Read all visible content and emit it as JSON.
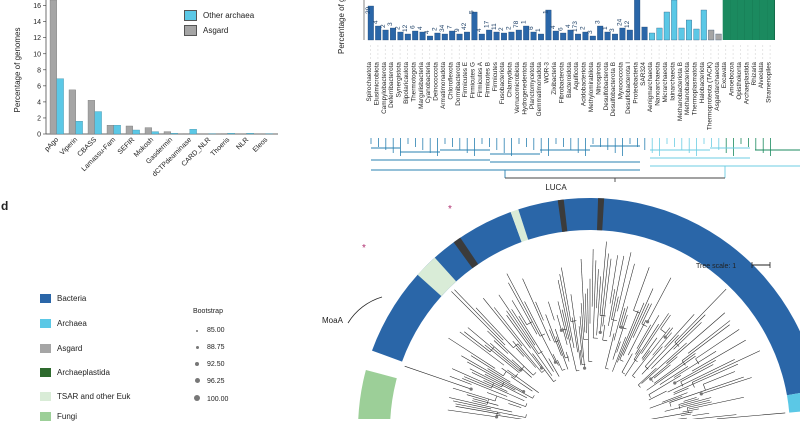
{
  "panel_c_left": {
    "ylabel": "Percentage of genomes",
    "yticks": [
      "0",
      "2",
      "4",
      "6",
      "8",
      "10",
      "12",
      "14",
      "16"
    ],
    "legend": [
      "Other archaea",
      "Asgard"
    ],
    "colors": {
      "other_archaea": "#5bc8e6",
      "asgard": "#a5a5a5"
    },
    "chart_data": {
      "type": "bar",
      "categories": [
        "pAgo",
        "Viperin",
        "CBASS",
        "Lamassu-Fam",
        "SEFIR",
        "Mokosh",
        "Gasdermin",
        "dCTPdeaminase",
        "CARD_NLR",
        "Thoeris",
        "NLR",
        "Eleos"
      ],
      "series": [
        {
          "name": "Other archaea",
          "values": [
            6.9,
            1.6,
            2.8,
            1.1,
            0.5,
            0.3,
            0.1,
            0.6,
            0.05,
            0.1,
            0.1,
            0.05
          ]
        },
        {
          "name": "Asgard",
          "values": [
            16.7,
            5.5,
            4.2,
            1.1,
            1.0,
            0.8,
            0.3,
            0.05,
            0.0,
            0.05,
            0.0,
            0.0
          ]
        }
      ],
      "ylim": [
        0,
        16.7
      ]
    }
  },
  "panel_c_right": {
    "ylabel_fragment": "Percentage of g",
    "bar_labels": [
      "29",
      "4",
      "2",
      "3",
      "2",
      "12",
      "6",
      "4",
      "4",
      "2",
      "34",
      "7",
      "9",
      "42",
      "5",
      "4",
      "17",
      "11",
      "2",
      "2",
      "78",
      "1",
      "6",
      "1",
      "1",
      "4",
      "6",
      "4",
      "173",
      "2",
      "3",
      "3",
      "1",
      "3",
      "24",
      "12"
    ],
    "taxa": [
      "Spirochaetota",
      "Elusimicrobiota",
      "Campylobacterota",
      "Deferribacterota",
      "Synergistota",
      "Bipolaricaulota",
      "Thermotogota",
      "Margulisbacteria",
      "Cyanobacteria",
      "Deinococcota",
      "Armatimonadota",
      "Chloroflexota",
      "Dormibacterota",
      "Firmicutes E",
      "Firmicutes G",
      "Firmicutes A",
      "Firmicutes B",
      "Firmicutes",
      "Fusobacteriota",
      "Chlamydiota",
      "Verrucomicrobiota",
      "Hydrogenedentota",
      "Planctomycetota",
      "Gemmatimonadota",
      "WOR-3",
      "Zixibacteria",
      "Fibrobacterota",
      "Bacteroidota",
      "Aquificota",
      "Acidobacteriota",
      "Methylomirabilota",
      "Nitrospirota",
      "Desulfobacterota",
      "Desulfobacterota B",
      "Myxococcota",
      "Desulfobacterota I",
      "Proteobacteria",
      "SAR324",
      "Aenigmarchaeota",
      "Nanoarchaeota",
      "Micrarchaeota",
      "Iainarchaeota",
      "Methanobacteriota B",
      "Methanobacteriota",
      "Thermoplasmatota",
      "Halobacteriota",
      "Thermoproteota (TACK)",
      "Asgardarchaeota",
      "Excavata",
      "Amoebozoa",
      "Opisthokonta",
      "Archaeplastida",
      "Rhizaria",
      "Alveolata",
      "Stramenopiles"
    ],
    "root_label": "LUCA"
  },
  "panel_d": {
    "letter": "d",
    "legend_items": [
      {
        "label": "Bacteria",
        "color": "#2a66a8"
      },
      {
        "label": "Archaea",
        "color": "#5bc8e6"
      },
      {
        "label": "Asgard",
        "color": "#a5a5a5"
      },
      {
        "label": "Archaeplastida",
        "color": "#2e6a2e"
      },
      {
        "label": "TSAR and other Euk",
        "color": "#d9ecd7"
      },
      {
        "label": "Fungi",
        "color": "#9ccf98"
      }
    ],
    "bootstrap_title": "Bootstrap",
    "bootstrap_values": [
      "85.00",
      "88.75",
      "92.50",
      "96.25",
      "100.00"
    ],
    "tree_scale": "Tree scale: 1",
    "clade_label": "MoaA",
    "star_marker": "*"
  }
}
